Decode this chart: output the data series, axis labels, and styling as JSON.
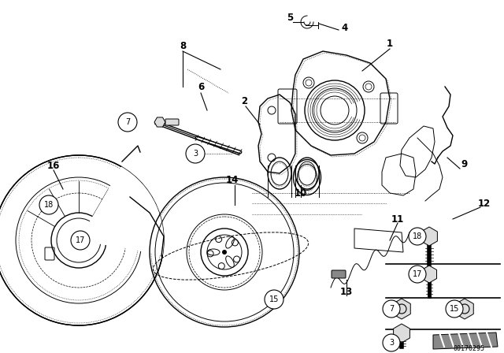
{
  "bg_color": "#ffffff",
  "doc_number": "00170295",
  "figsize": [
    6.4,
    4.48
  ],
  "dpi": 100
}
